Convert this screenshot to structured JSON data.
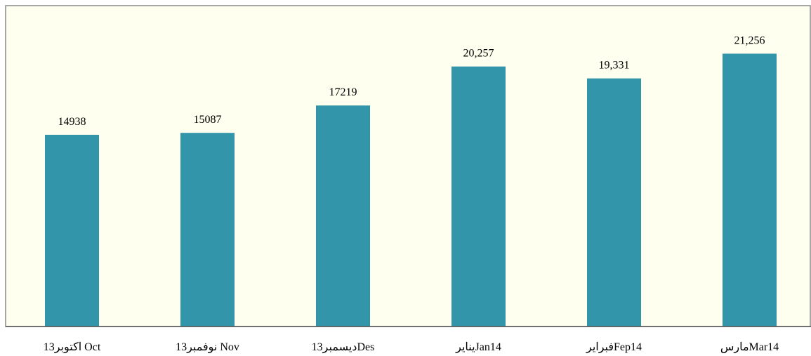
{
  "chart_data": {
    "type": "bar",
    "categories": [
      "اكتوبر13 Oct",
      "نوفمبر13 Nov",
      "ديسمبر13Des",
      "ينايرJan14",
      "فبرايرFep14",
      "مارسMar14"
    ],
    "values": [
      14938,
      15087,
      17219,
      20257,
      19331,
      21256
    ],
    "value_labels": [
      "14938",
      "15087",
      "17219",
      "20,257",
      "19,331",
      "21,256"
    ],
    "color": "#3395aa",
    "ylim": [
      0,
      25000
    ]
  }
}
